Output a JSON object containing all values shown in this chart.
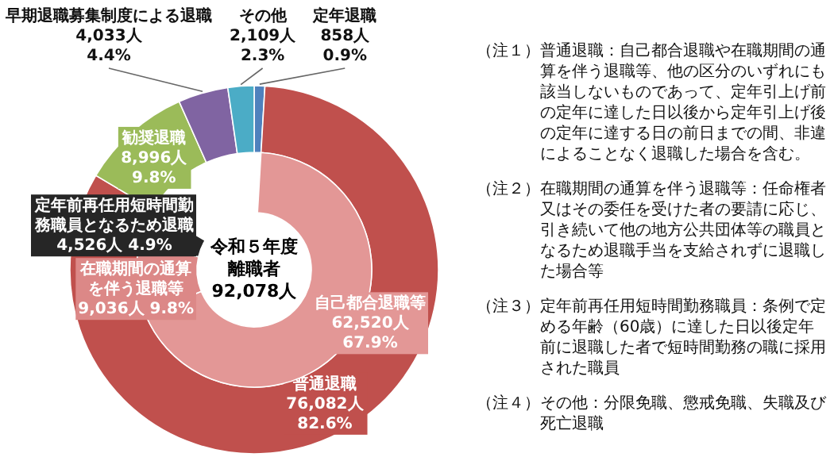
{
  "chart_data": [
    {
      "type": "donut",
      "title": "令和５年度離職者92,078人",
      "categories": [
        "定年退職",
        "普通退職",
        "勧奨退職",
        "早期退職募集制度による退職",
        "その他"
      ],
      "values": [
        858,
        76082,
        8996,
        4033,
        2109
      ],
      "value_labels": [
        "858人\n0.9%",
        "76,082人\n82.6%",
        "8,996人\n9.8%",
        "4,033人\n4.4%",
        "2,109人\n2.3%"
      ],
      "colors": [
        "#4f81bd",
        "#c0504d",
        "#9bbb59",
        "#8064a2",
        "#4bacc6"
      ],
      "annotations": [
        "（注１）普通退職：自己都合退職や在職期間の通算を伴う退職等、他の区分のいずれにも該当しないものであって、定年引上げ前の定年に達した日以後から定年引上げ後の定年に達する日の前日までの間、非違によることなく退職した場合を含む。",
        "（注２）在職期間の通算を伴う退職等：任命権者又はその委任を受けた者の要請に応じ、引き続いて他の地方公共団体等の職員となるため退職手当を支給されずに退職した場合等",
        "（注３）定年前再任用短時間勤務職員：条例で定める年齢（60歳）に達した日以後定年前に退職した者で短時間勤務の職に採用された職員",
        "（注４）その他：分限免職、懲戒免職、失職及び死亡退職"
      ]
    },
    {
      "type": "donut",
      "categories": [
        "自己都合退職等",
        "在職期間の通算を伴う退職等",
        "定年前再任用短時間勤務職員となるため退職"
      ],
      "values": [
        62520,
        9036,
        4526
      ],
      "value_labels": [
        "62,520人\n67.9%",
        "9,036人  9.8%",
        "4,526人  4.9%"
      ],
      "colors": [
        "#e39796",
        "#dc8887",
        "#262626"
      ]
    }
  ]
}
